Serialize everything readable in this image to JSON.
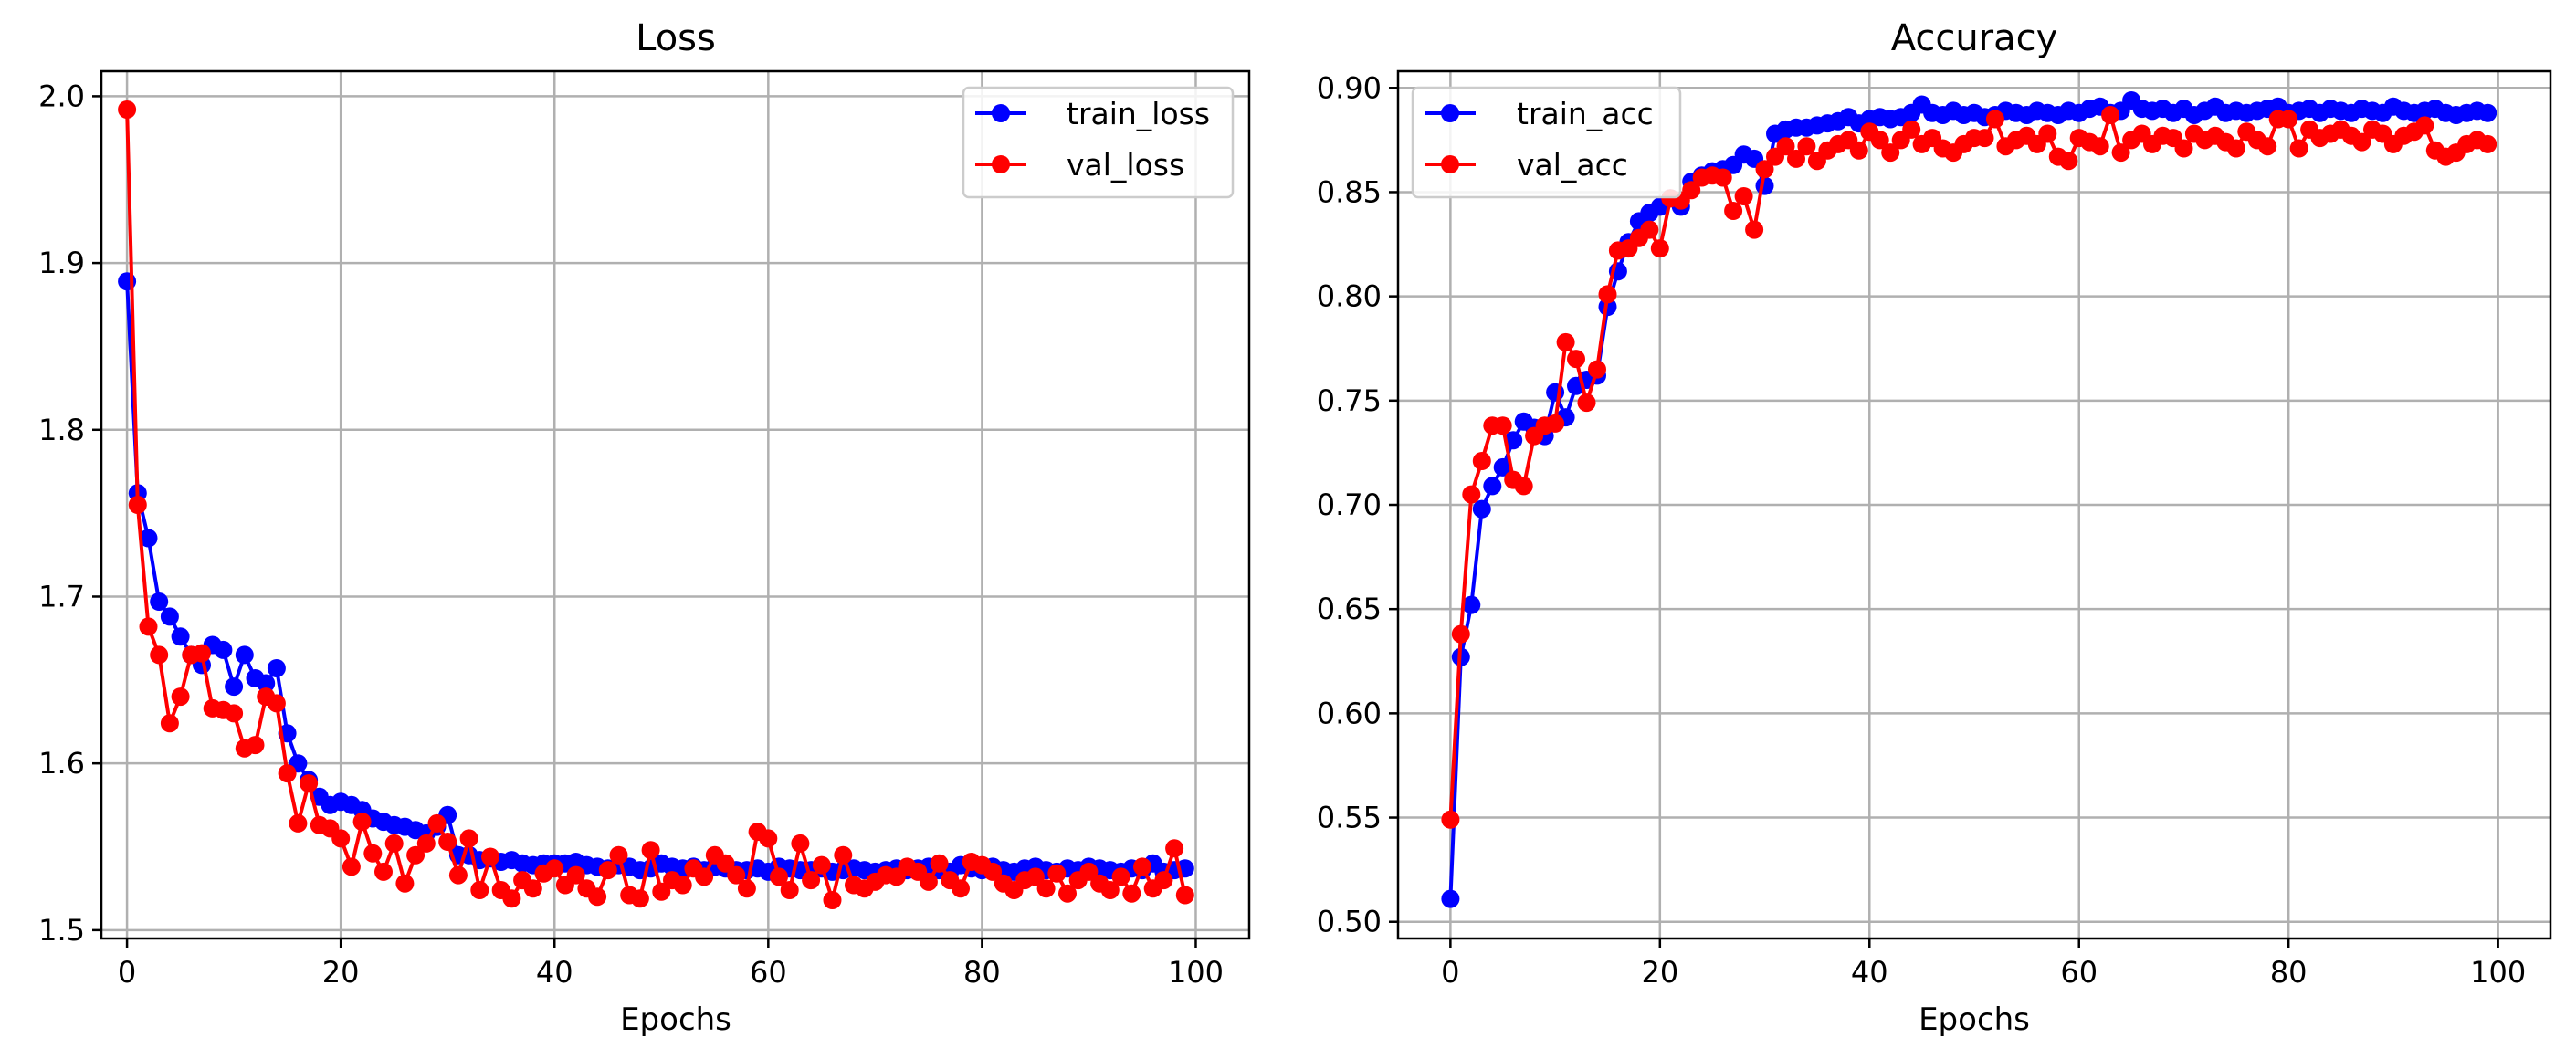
{
  "chart_data": [
    {
      "type": "line",
      "title": "Loss",
      "xlabel": "Epochs",
      "ylabel": "",
      "xlim": [
        -2.4,
        105
      ],
      "ylim": [
        1.495,
        2.015
      ],
      "xticks": [
        0,
        20,
        40,
        60,
        80,
        100
      ],
      "xtick_labels": [
        "0",
        "20",
        "40",
        "60",
        "80",
        "100"
      ],
      "yticks": [
        1.5,
        1.6,
        1.7,
        1.8,
        1.9,
        2.0
      ],
      "ytick_labels": [
        "1.5",
        "1.6",
        "1.7",
        "1.8",
        "1.9",
        "2.0"
      ],
      "grid": true,
      "legend_position": "upper right",
      "series": [
        {
          "name": "train_loss",
          "color": "#0000ff",
          "values": [
            1.889,
            1.762,
            1.735,
            1.697,
            1.688,
            1.676,
            1.665,
            1.659,
            1.671,
            1.668,
            1.646,
            1.665,
            1.651,
            1.648,
            1.657,
            1.618,
            1.6,
            1.59,
            1.58,
            1.575,
            1.577,
            1.575,
            1.572,
            1.567,
            1.565,
            1.563,
            1.562,
            1.56,
            1.558,
            1.562,
            1.569,
            1.545,
            1.545,
            1.542,
            1.543,
            1.541,
            1.542,
            1.54,
            1.539,
            1.54,
            1.54,
            1.54,
            1.541,
            1.539,
            1.538,
            1.537,
            1.539,
            1.538,
            1.536,
            1.537,
            1.54,
            1.538,
            1.537,
            1.538,
            1.536,
            1.538,
            1.537,
            1.536,
            1.536,
            1.537,
            1.535,
            1.538,
            1.537,
            1.536,
            1.536,
            1.537,
            1.535,
            1.536,
            1.537,
            1.536,
            1.535,
            1.536,
            1.537,
            1.536,
            1.537,
            1.538,
            1.536,
            1.535,
            1.539,
            1.537,
            1.536,
            1.538,
            1.536,
            1.535,
            1.537,
            1.538,
            1.536,
            1.535,
            1.537,
            1.536,
            1.538,
            1.537,
            1.536,
            1.535,
            1.537,
            1.536,
            1.54,
            1.535,
            1.536,
            1.537
          ]
        },
        {
          "name": "val_loss",
          "color": "#ff0000",
          "values": [
            1.992,
            1.755,
            1.682,
            1.665,
            1.624,
            1.64,
            1.665,
            1.666,
            1.633,
            1.632,
            1.63,
            1.609,
            1.611,
            1.64,
            1.636,
            1.594,
            1.564,
            1.588,
            1.563,
            1.561,
            1.555,
            1.538,
            1.565,
            1.546,
            1.535,
            1.552,
            1.528,
            1.545,
            1.552,
            1.564,
            1.553,
            1.533,
            1.555,
            1.524,
            1.544,
            1.524,
            1.519,
            1.53,
            1.525,
            1.534,
            1.537,
            1.527,
            1.533,
            1.525,
            1.52,
            1.536,
            1.545,
            1.521,
            1.519,
            1.548,
            1.523,
            1.53,
            1.527,
            1.537,
            1.532,
            1.545,
            1.54,
            1.533,
            1.525,
            1.559,
            1.555,
            1.532,
            1.524,
            1.552,
            1.53,
            1.539,
            1.518,
            1.545,
            1.527,
            1.525,
            1.529,
            1.533,
            1.532,
            1.538,
            1.535,
            1.529,
            1.54,
            1.53,
            1.525,
            1.541,
            1.539,
            1.535,
            1.528,
            1.524,
            1.53,
            1.532,
            1.525,
            1.534,
            1.522,
            1.53,
            1.535,
            1.528,
            1.524,
            1.532,
            1.522,
            1.538,
            1.525,
            1.53,
            1.549,
            1.521
          ]
        }
      ]
    },
    {
      "type": "line",
      "title": "Accuracy",
      "xlabel": "Epochs",
      "ylabel": "",
      "xlim": [
        -5,
        105
      ],
      "ylim": [
        0.492,
        0.908
      ],
      "xticks": [
        0,
        20,
        40,
        60,
        80,
        100
      ],
      "xtick_labels": [
        "0",
        "20",
        "40",
        "60",
        "80",
        "100"
      ],
      "yticks": [
        0.5,
        0.55,
        0.6,
        0.65,
        0.7,
        0.75,
        0.8,
        0.85,
        0.9
      ],
      "ytick_labels": [
        "0.50",
        "0.55",
        "0.60",
        "0.65",
        "0.70",
        "0.75",
        "0.80",
        "0.85",
        "0.90"
      ],
      "grid": true,
      "legend_position": "upper left",
      "series": [
        {
          "name": "train_acc",
          "color": "#0000ff",
          "values": [
            0.511,
            0.627,
            0.652,
            0.698,
            0.709,
            0.718,
            0.731,
            0.74,
            0.737,
            0.733,
            0.754,
            0.742,
            0.757,
            0.76,
            0.762,
            0.795,
            0.812,
            0.826,
            0.836,
            0.84,
            0.843,
            0.847,
            0.843,
            0.855,
            0.858,
            0.86,
            0.861,
            0.863,
            0.868,
            0.866,
            0.853,
            0.878,
            0.88,
            0.881,
            0.881,
            0.882,
            0.883,
            0.884,
            0.886,
            0.883,
            0.885,
            0.886,
            0.885,
            0.886,
            0.888,
            0.892,
            0.888,
            0.887,
            0.889,
            0.887,
            0.888,
            0.886,
            0.887,
            0.889,
            0.888,
            0.887,
            0.889,
            0.888,
            0.887,
            0.889,
            0.888,
            0.89,
            0.891,
            0.888,
            0.889,
            0.894,
            0.89,
            0.889,
            0.89,
            0.888,
            0.89,
            0.887,
            0.889,
            0.891,
            0.888,
            0.889,
            0.888,
            0.889,
            0.89,
            0.891,
            0.888,
            0.889,
            0.89,
            0.888,
            0.89,
            0.889,
            0.888,
            0.89,
            0.889,
            0.888,
            0.891,
            0.889,
            0.888,
            0.889,
            0.89,
            0.888,
            0.887,
            0.888,
            0.889,
            0.888
          ]
        },
        {
          "name": "val_acc",
          "color": "#ff0000",
          "values": [
            0.549,
            0.638,
            0.705,
            0.721,
            0.738,
            0.738,
            0.712,
            0.709,
            0.733,
            0.738,
            0.739,
            0.778,
            0.77,
            0.749,
            0.765,
            0.801,
            0.822,
            0.823,
            0.828,
            0.832,
            0.823,
            0.847,
            0.846,
            0.851,
            0.857,
            0.858,
            0.857,
            0.841,
            0.848,
            0.832,
            0.861,
            0.867,
            0.872,
            0.866,
            0.872,
            0.865,
            0.87,
            0.873,
            0.875,
            0.87,
            0.879,
            0.875,
            0.869,
            0.875,
            0.88,
            0.873,
            0.876,
            0.871,
            0.869,
            0.873,
            0.876,
            0.876,
            0.885,
            0.872,
            0.875,
            0.877,
            0.873,
            0.878,
            0.867,
            0.865,
            0.876,
            0.874,
            0.872,
            0.887,
            0.869,
            0.875,
            0.878,
            0.873,
            0.877,
            0.876,
            0.871,
            0.878,
            0.875,
            0.877,
            0.874,
            0.871,
            0.879,
            0.875,
            0.872,
            0.885,
            0.885,
            0.871,
            0.88,
            0.876,
            0.878,
            0.88,
            0.877,
            0.874,
            0.88,
            0.878,
            0.873,
            0.877,
            0.879,
            0.882,
            0.87,
            0.867,
            0.869,
            0.873,
            0.875,
            0.873
          ]
        }
      ]
    }
  ]
}
